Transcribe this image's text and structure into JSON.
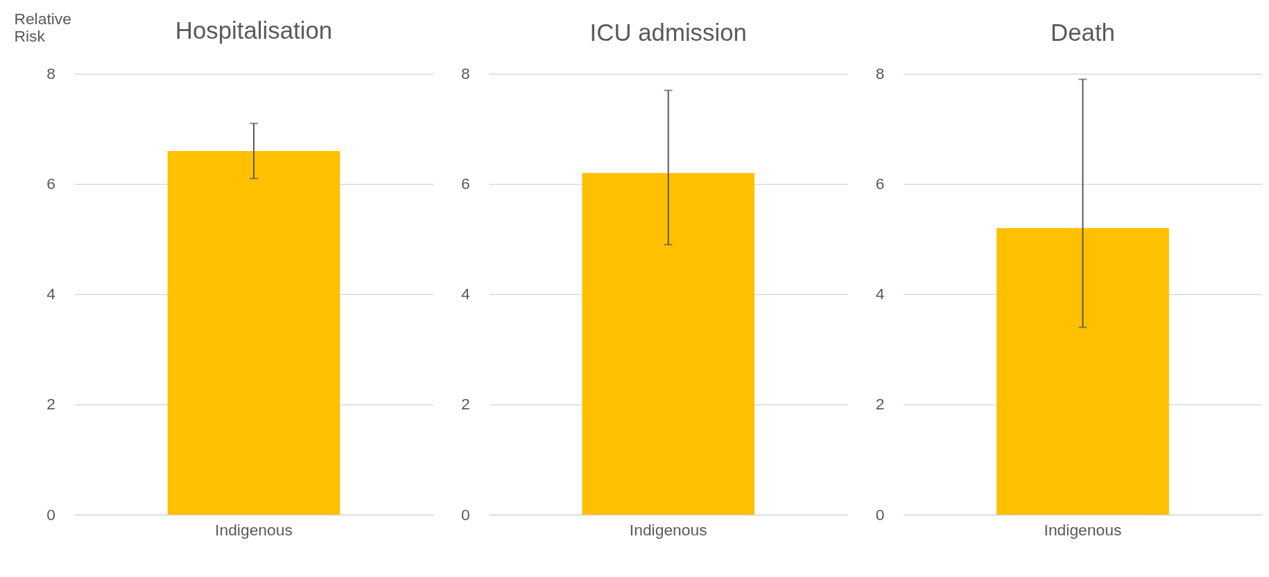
{
  "chart_data": [
    {
      "type": "bar",
      "title": "Hospitalisation",
      "ylabel": "Relative Risk",
      "categories": [
        "Indigenous"
      ],
      "values": [
        6.6
      ],
      "errors": [
        [
          6.1,
          7.1
        ]
      ],
      "color": "#ffc000",
      "ylim": [
        0,
        8
      ],
      "yticks": [
        0,
        2,
        4,
        6,
        8
      ],
      "grid": "y"
    },
    {
      "type": "bar",
      "title": "ICU admission",
      "categories": [
        "Indigenous"
      ],
      "values": [
        6.2
      ],
      "errors": [
        [
          4.9,
          7.7
        ]
      ],
      "color": "#ffc000",
      "ylim": [
        0,
        8
      ],
      "yticks": [
        0,
        2,
        4,
        6,
        8
      ],
      "grid": "y"
    },
    {
      "type": "bar",
      "title": "Death",
      "categories": [
        "Indigenous"
      ],
      "values": [
        5.2
      ],
      "errors": [
        [
          3.4,
          7.9
        ]
      ],
      "color": "#ffc000",
      "ylim": [
        0,
        8
      ],
      "yticks": [
        0,
        2,
        4,
        6,
        8
      ],
      "grid": "y"
    }
  ]
}
